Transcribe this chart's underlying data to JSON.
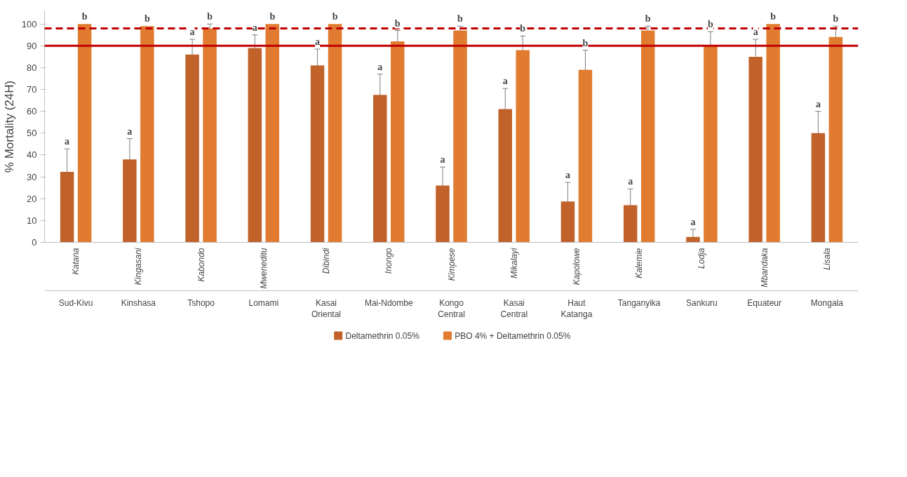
{
  "chart_data": {
    "type": "bar",
    "ylabel": "% Mortality (24H)",
    "categories": [
      "Katana",
      "Kingasani",
      "Kabondo",
      "Mweneditu",
      "Dibindi",
      "Inongo",
      "Kimpese",
      "Mikalayi",
      "Kapolowe",
      "Kalemie",
      "Lodja",
      "Mbandaka",
      "Lisala"
    ],
    "series": [
      {
        "name": "Deltamethrin 0.05%",
        "color": "#c0622a",
        "values": [
          32.3,
          38,
          86,
          89,
          81,
          67.5,
          26,
          61,
          18.7,
          17,
          2.5,
          85,
          50
        ],
        "errors": [
          10.5,
          9.5,
          7,
          6,
          7.5,
          9.5,
          8.5,
          9.5,
          8.8,
          7.5,
          3.5,
          8,
          10
        ],
        "value_labels": [
          "a",
          "a",
          "a",
          "a",
          "a",
          "a",
          "a",
          "a",
          "a",
          "a",
          "a",
          "a",
          "a"
        ]
      },
      {
        "name": "PBO 4% + Deltamethrin 0.05%",
        "color": "#e07b30",
        "values": [
          100,
          99,
          98,
          100,
          100,
          92,
          97,
          88,
          79,
          97,
          90,
          100,
          94
        ],
        "errors": [
          null,
          null,
          2,
          null,
          null,
          5,
          2,
          6.5,
          9,
          2,
          6.5,
          null,
          5
        ],
        "value_labels": [
          "b",
          "b",
          "b",
          "b",
          "b",
          "b",
          "b",
          "b",
          "b",
          "b",
          "b",
          "b",
          "b"
        ]
      }
    ],
    "annotations": [
      "Sud-Kivu",
      "Kinshasa",
      "Tshopo",
      "Lomami",
      "Kasai Oriental",
      "Mai-Ndombe",
      "Kongo Central",
      "Kasai Central",
      "Haut Katanga",
      "Tanganyika",
      "Sankuru",
      "Equateur",
      "Mongala"
    ],
    "ref_lines": [
      {
        "axis": "y",
        "value": 98,
        "color": "#c00000",
        "line_style": "dashed"
      },
      {
        "axis": "y",
        "value": 90,
        "color": "#c00000",
        "line_style": "solid"
      }
    ],
    "ylim": [
      0,
      106
    ],
    "yticks": [
      0,
      10,
      20,
      30,
      40,
      50,
      60,
      70,
      80,
      90,
      100
    ],
    "grid": false,
    "legend": "bottom"
  }
}
